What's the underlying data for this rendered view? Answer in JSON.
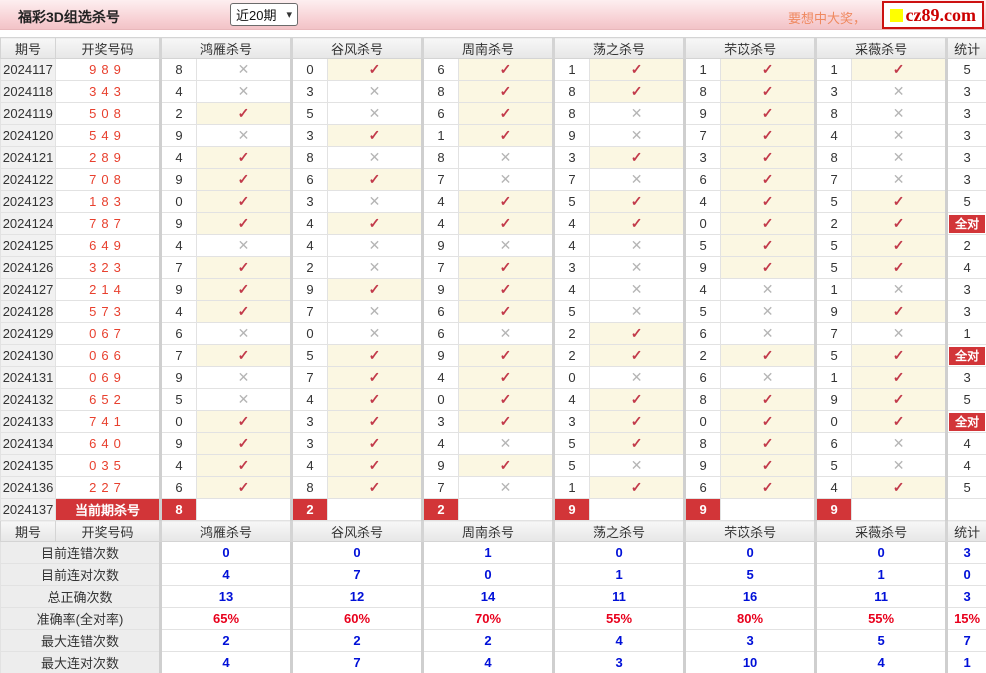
{
  "header": {
    "title": "福彩3D组选杀号",
    "range_select": {
      "value": "近20期"
    },
    "promo_text": "要想中大奖，",
    "logo_text": "cz89.com"
  },
  "icons": {
    "check": "✓",
    "cross": "✕",
    "chevron_down": "▾",
    "logo_square": "yellow-square"
  },
  "colors": {
    "topbar_pink": "#f5c9cd",
    "accent_red": "#d23538",
    "check_red": "#c23a4a",
    "cross_gray": "#b5b5b5",
    "hit_bg": "#fbf7e2",
    "draw_number_red": "#e8402e",
    "value_blue": "#0010d8",
    "value_red": "#e8001c",
    "promo_orange": "#ef8960",
    "logo_red": "#cc0000",
    "logo_yellow": "#ffff00"
  },
  "table": {
    "col_headers": {
      "period": "期号",
      "numbers": "开奖号码",
      "experts": [
        "鸿雁杀号",
        "谷风杀号",
        "周南杀号",
        "荡之杀号",
        "芣苡杀号",
        "采薇杀号"
      ],
      "stat": "统计"
    },
    "all_correct_label": "全对",
    "rows": [
      {
        "period": "2024117",
        "draw": "989",
        "cells": [
          [
            "8",
            0
          ],
          [
            "0",
            1
          ],
          [
            "6",
            1
          ],
          [
            "1",
            1
          ],
          [
            "1",
            1
          ],
          [
            "1",
            1
          ]
        ],
        "stat": "5"
      },
      {
        "period": "2024118",
        "draw": "343",
        "cells": [
          [
            "4",
            0
          ],
          [
            "3",
            0
          ],
          [
            "8",
            1
          ],
          [
            "8",
            1
          ],
          [
            "8",
            1
          ],
          [
            "3",
            0
          ]
        ],
        "stat": "3"
      },
      {
        "period": "2024119",
        "draw": "508",
        "cells": [
          [
            "2",
            1
          ],
          [
            "5",
            0
          ],
          [
            "6",
            1
          ],
          [
            "8",
            0
          ],
          [
            "9",
            1
          ],
          [
            "8",
            0
          ]
        ],
        "stat": "3"
      },
      {
        "period": "2024120",
        "draw": "549",
        "cells": [
          [
            "9",
            0
          ],
          [
            "3",
            1
          ],
          [
            "1",
            1
          ],
          [
            "9",
            0
          ],
          [
            "7",
            1
          ],
          [
            "4",
            0
          ]
        ],
        "stat": "3"
      },
      {
        "period": "2024121",
        "draw": "289",
        "cells": [
          [
            "4",
            1
          ],
          [
            "8",
            0
          ],
          [
            "8",
            0
          ],
          [
            "3",
            1
          ],
          [
            "3",
            1
          ],
          [
            "8",
            0
          ]
        ],
        "stat": "3"
      },
      {
        "period": "2024122",
        "draw": "708",
        "cells": [
          [
            "9",
            1
          ],
          [
            "6",
            1
          ],
          [
            "7",
            0
          ],
          [
            "7",
            0
          ],
          [
            "6",
            1
          ],
          [
            "7",
            0
          ]
        ],
        "stat": "3"
      },
      {
        "period": "2024123",
        "draw": "183",
        "cells": [
          [
            "0",
            1
          ],
          [
            "3",
            0
          ],
          [
            "4",
            1
          ],
          [
            "5",
            1
          ],
          [
            "4",
            1
          ],
          [
            "5",
            1
          ]
        ],
        "stat": "5"
      },
      {
        "period": "2024124",
        "draw": "787",
        "cells": [
          [
            "9",
            1
          ],
          [
            "4",
            1
          ],
          [
            "4",
            1
          ],
          [
            "4",
            1
          ],
          [
            "0",
            1
          ],
          [
            "2",
            1
          ]
        ],
        "stat": "全对"
      },
      {
        "period": "2024125",
        "draw": "649",
        "cells": [
          [
            "4",
            0
          ],
          [
            "4",
            0
          ],
          [
            "9",
            0
          ],
          [
            "4",
            0
          ],
          [
            "5",
            1
          ],
          [
            "5",
            1
          ]
        ],
        "stat": "2"
      },
      {
        "period": "2024126",
        "draw": "323",
        "cells": [
          [
            "7",
            1
          ],
          [
            "2",
            0
          ],
          [
            "7",
            1
          ],
          [
            "3",
            0
          ],
          [
            "9",
            1
          ],
          [
            "5",
            1
          ]
        ],
        "stat": "4"
      },
      {
        "period": "2024127",
        "draw": "214",
        "cells": [
          [
            "9",
            1
          ],
          [
            "9",
            1
          ],
          [
            "9",
            1
          ],
          [
            "4",
            0
          ],
          [
            "4",
            0
          ],
          [
            "1",
            0
          ]
        ],
        "stat": "3"
      },
      {
        "period": "2024128",
        "draw": "573",
        "cells": [
          [
            "4",
            1
          ],
          [
            "7",
            0
          ],
          [
            "6",
            1
          ],
          [
            "5",
            0
          ],
          [
            "5",
            0
          ],
          [
            "9",
            1
          ]
        ],
        "stat": "3"
      },
      {
        "period": "2024129",
        "draw": "067",
        "cells": [
          [
            "6",
            0
          ],
          [
            "0",
            0
          ],
          [
            "6",
            0
          ],
          [
            "2",
            1
          ],
          [
            "6",
            0
          ],
          [
            "7",
            0
          ]
        ],
        "stat": "1"
      },
      {
        "period": "2024130",
        "draw": "066",
        "cells": [
          [
            "7",
            1
          ],
          [
            "5",
            1
          ],
          [
            "9",
            1
          ],
          [
            "2",
            1
          ],
          [
            "2",
            1
          ],
          [
            "5",
            1
          ]
        ],
        "stat": "全对"
      },
      {
        "period": "2024131",
        "draw": "069",
        "cells": [
          [
            "9",
            0
          ],
          [
            "7",
            1
          ],
          [
            "4",
            1
          ],
          [
            "0",
            0
          ],
          [
            "6",
            0
          ],
          [
            "1",
            1
          ]
        ],
        "stat": "3"
      },
      {
        "period": "2024132",
        "draw": "652",
        "cells": [
          [
            "5",
            0
          ],
          [
            "4",
            1
          ],
          [
            "0",
            1
          ],
          [
            "4",
            1
          ],
          [
            "8",
            1
          ],
          [
            "9",
            1
          ]
        ],
        "stat": "5"
      },
      {
        "period": "2024133",
        "draw": "741",
        "cells": [
          [
            "0",
            1
          ],
          [
            "3",
            1
          ],
          [
            "3",
            1
          ],
          [
            "3",
            1
          ],
          [
            "0",
            1
          ],
          [
            "0",
            1
          ]
        ],
        "stat": "全对"
      },
      {
        "period": "2024134",
        "draw": "640",
        "cells": [
          [
            "9",
            1
          ],
          [
            "3",
            1
          ],
          [
            "4",
            0
          ],
          [
            "5",
            1
          ],
          [
            "8",
            1
          ],
          [
            "6",
            0
          ]
        ],
        "stat": "4"
      },
      {
        "period": "2024135",
        "draw": "035",
        "cells": [
          [
            "4",
            1
          ],
          [
            "4",
            1
          ],
          [
            "9",
            1
          ],
          [
            "5",
            0
          ],
          [
            "9",
            1
          ],
          [
            "5",
            0
          ]
        ],
        "stat": "4"
      },
      {
        "period": "2024136",
        "draw": "227",
        "cells": [
          [
            "6",
            1
          ],
          [
            "8",
            1
          ],
          [
            "7",
            0
          ],
          [
            "1",
            1
          ],
          [
            "6",
            1
          ],
          [
            "4",
            1
          ]
        ],
        "stat": "5"
      }
    ],
    "current_row": {
      "period": "2024137",
      "label": "当前期杀号",
      "kills": [
        "8",
        "2",
        "2",
        "9",
        "9",
        "9"
      ],
      "stat": ""
    }
  },
  "summary": {
    "rows": [
      {
        "label": "目前连错次数",
        "values": [
          "0",
          "0",
          "1",
          "0",
          "0",
          "0"
        ],
        "stat": "3",
        "highlight": "blue"
      },
      {
        "label": "目前连对次数",
        "values": [
          "4",
          "7",
          "0",
          "1",
          "5",
          "1"
        ],
        "stat": "0",
        "highlight": "blue"
      },
      {
        "label": "总正确次数",
        "values": [
          "13",
          "12",
          "14",
          "11",
          "16",
          "11"
        ],
        "stat": "3",
        "highlight": "blue"
      },
      {
        "label": "准确率(全对率)",
        "values": [
          "65%",
          "60%",
          "70%",
          "55%",
          "80%",
          "55%"
        ],
        "stat": "15%",
        "highlight": "red"
      },
      {
        "label": "最大连错次数",
        "values": [
          "2",
          "2",
          "2",
          "4",
          "3",
          "5"
        ],
        "stat": "7",
        "highlight": "blue"
      },
      {
        "label": "最大连对次数",
        "values": [
          "4",
          "7",
          "4",
          "3",
          "10",
          "4"
        ],
        "stat": "1",
        "highlight": "blue"
      }
    ]
  }
}
